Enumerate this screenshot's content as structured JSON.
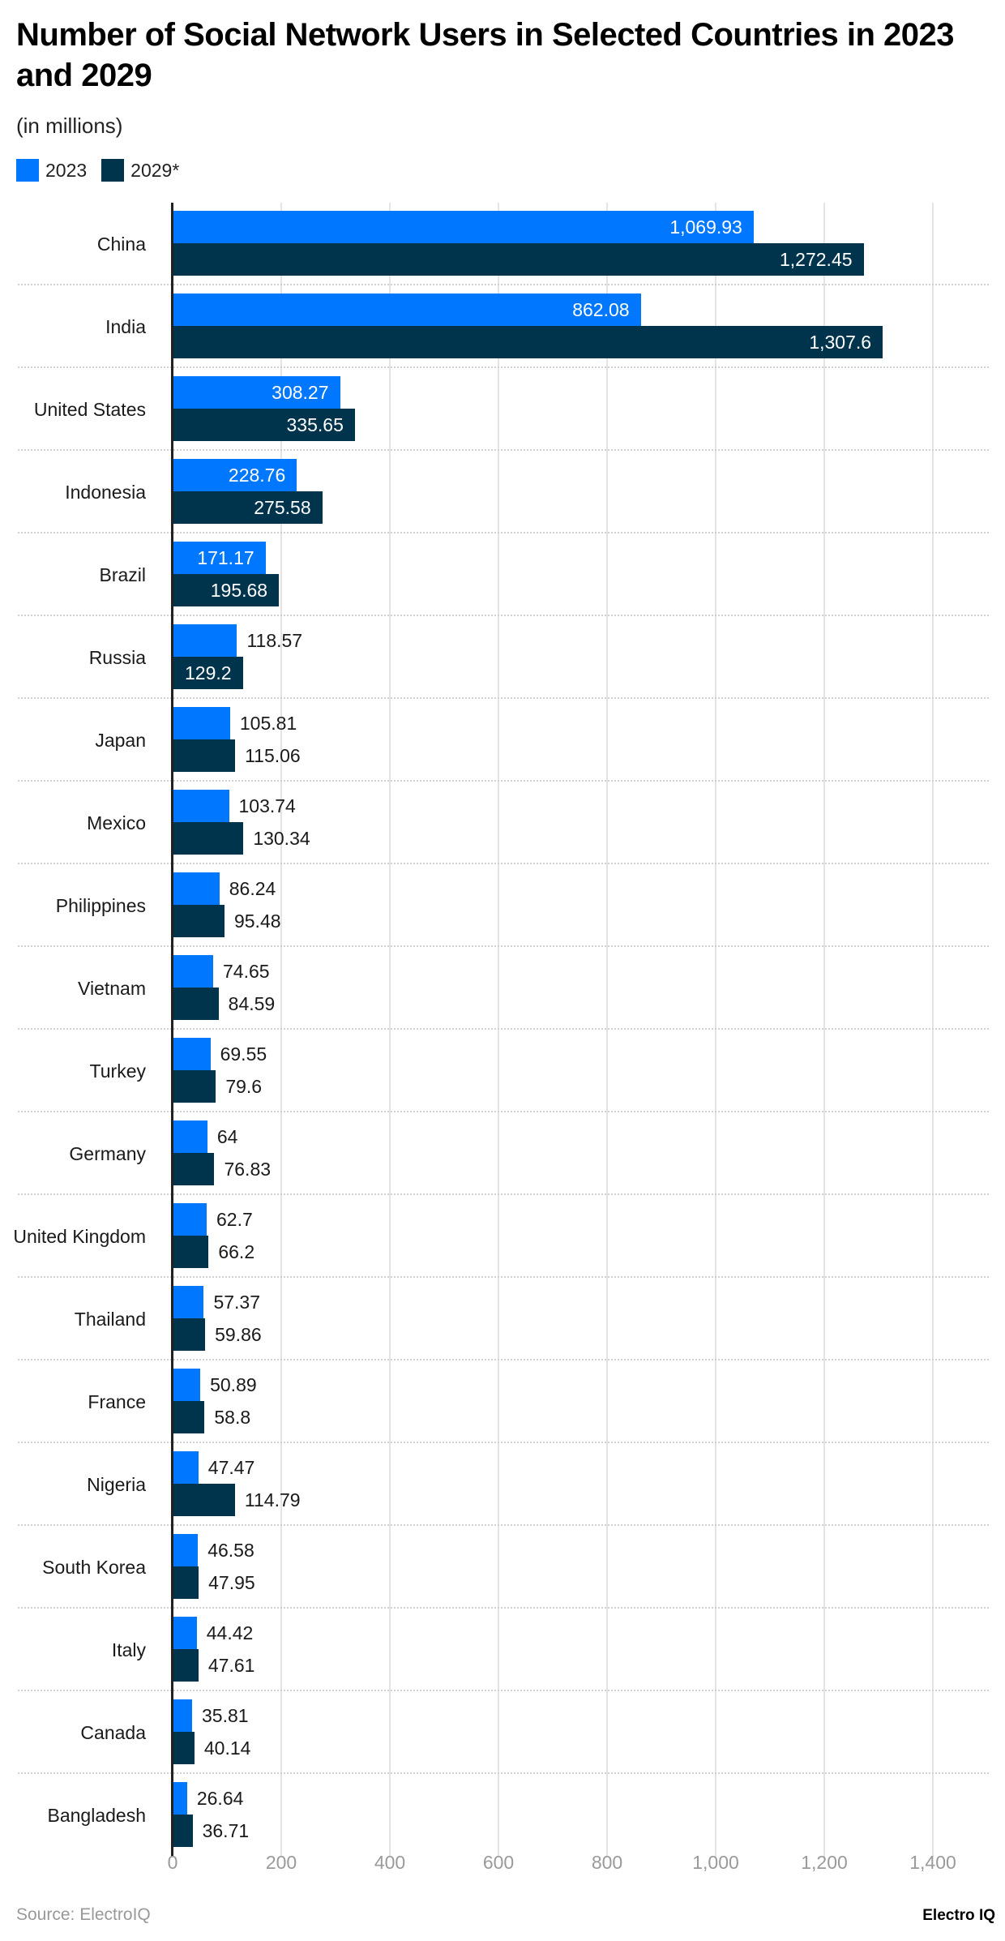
{
  "chart_data": {
    "type": "bar",
    "orientation": "horizontal",
    "title": "Number of Social Network Users in Selected Countries in 2023 and 2029",
    "subtitle": "(in millions)",
    "xlabel": "",
    "ylabel": "",
    "xlim": [
      0,
      1400
    ],
    "x_ticks": [
      "0",
      "200",
      "400",
      "600",
      "800",
      "1,000",
      "1,200",
      "1,400"
    ],
    "grid": true,
    "legend_position": "top-left",
    "categories": [
      "China",
      "India",
      "United States",
      "Indonesia",
      "Brazil",
      "Russia",
      "Japan",
      "Mexico",
      "Philippines",
      "Vietnam",
      "Turkey",
      "Germany",
      "United Kingdom",
      "Thailand",
      "France",
      "Nigeria",
      "South Korea",
      "Italy",
      "Canada",
      "Bangladesh"
    ],
    "series": [
      {
        "name": "2023",
        "color": "#0077FF",
        "values": [
          1069.93,
          862.08,
          308.27,
          228.76,
          171.17,
          118.57,
          105.81,
          103.74,
          86.24,
          74.65,
          69.55,
          64,
          62.7,
          57.37,
          50.89,
          47.47,
          46.58,
          44.42,
          35.81,
          26.64
        ],
        "labels": [
          "1,069.93",
          "862.08",
          "308.27",
          "228.76",
          "171.17",
          "118.57",
          "105.81",
          "103.74",
          "86.24",
          "74.65",
          "69.55",
          "64",
          "62.7",
          "57.37",
          "50.89",
          "47.47",
          "46.58",
          "44.42",
          "35.81",
          "26.64"
        ]
      },
      {
        "name": "2029*",
        "color": "#00344D",
        "values": [
          1272.45,
          1307.6,
          335.65,
          275.58,
          195.68,
          129.2,
          115.06,
          130.34,
          95.48,
          84.59,
          79.6,
          76.83,
          66.2,
          59.86,
          58.8,
          114.79,
          47.95,
          47.61,
          40.14,
          36.71
        ],
        "labels": [
          "1,272.45",
          "1,307.6",
          "335.65",
          "275.58",
          "195.68",
          "129.2",
          "115.06",
          "130.34",
          "95.48",
          "84.59",
          "79.6",
          "76.83",
          "66.2",
          "59.86",
          "58.8",
          "114.79",
          "47.95",
          "47.61",
          "40.14",
          "36.71"
        ]
      }
    ]
  },
  "footer": {
    "source": "Source: ElectroIQ",
    "brand": "Electro IQ"
  }
}
